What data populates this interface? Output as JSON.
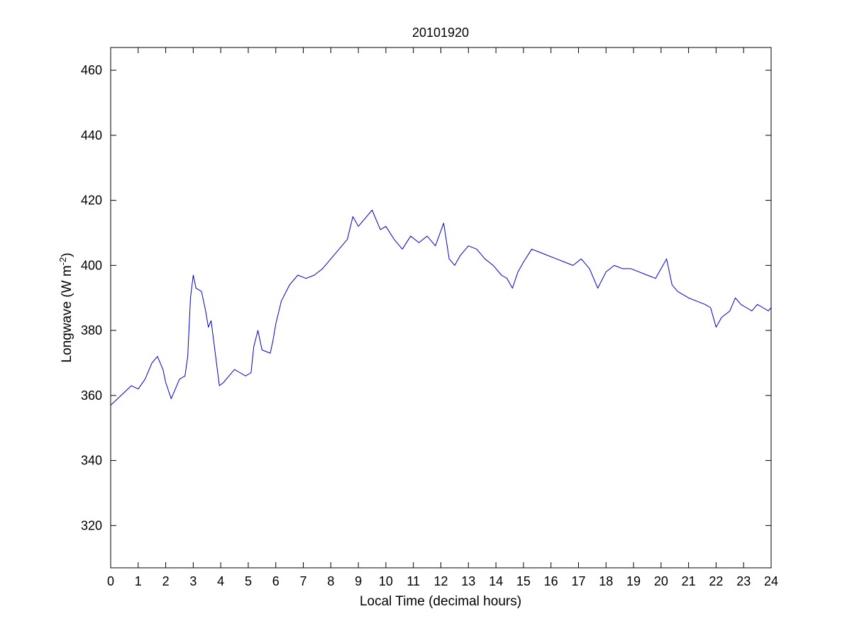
{
  "chart_data": {
    "type": "line",
    "title": "20101920",
    "xlabel": "Local Time (decimal hours)",
    "ylabel_main": "Longwave (W m",
    "ylabel_sup": "-2",
    "ylabel_close": ")",
    "xlim": [
      0,
      24
    ],
    "ylim": [
      307,
      467
    ],
    "xticks": [
      "0",
      "1",
      "2",
      "3",
      "4",
      "5",
      "6",
      "7",
      "8",
      "9",
      "10",
      "11",
      "12",
      "13",
      "14",
      "15",
      "16",
      "17",
      "18",
      "19",
      "20",
      "21",
      "22",
      "23",
      "24"
    ],
    "yticks": [
      "320",
      "340",
      "360",
      "380",
      "400",
      "420",
      "440",
      "460"
    ],
    "grid": false,
    "legend": "none",
    "line_color": "#0000CC",
    "series": [
      {
        "x": [
          0,
          0.25,
          0.5,
          0.75,
          1.0,
          1.25,
          1.5,
          1.7,
          1.9,
          2.0,
          2.2,
          2.35,
          2.5,
          2.7,
          2.8,
          2.9,
          3.0,
          3.1,
          3.3,
          3.45,
          3.55,
          3.65,
          3.8,
          3.95,
          4.1,
          4.3,
          4.5,
          4.7,
          4.9,
          5.1,
          5.2,
          5.35,
          5.5,
          5.8,
          5.9,
          6.0,
          6.2,
          6.5,
          6.8,
          7.1,
          7.4,
          7.7,
          8.0,
          8.3,
          8.6,
          8.8,
          9.0,
          9.2,
          9.5,
          9.8,
          10.0,
          10.3,
          10.6,
          10.9,
          11.2,
          11.5,
          11.8,
          12.1,
          12.3,
          12.5,
          12.7,
          13.0,
          13.3,
          13.6,
          13.9,
          14.2,
          14.4,
          14.6,
          14.8,
          15.0,
          15.3,
          15.6,
          15.9,
          16.2,
          16.5,
          16.8,
          17.1,
          17.4,
          17.7,
          18.0,
          18.3,
          18.6,
          18.9,
          19.2,
          19.5,
          19.8,
          20.0,
          20.2,
          20.4,
          20.6,
          20.8,
          21.0,
          21.3,
          21.6,
          21.8,
          22.0,
          22.2,
          22.5,
          22.7,
          22.9,
          23.1,
          23.3,
          23.5,
          23.7,
          23.9,
          24.0
        ],
        "y": [
          357,
          359,
          361,
          363,
          362,
          365,
          370,
          372,
          368,
          364,
          359,
          362,
          365,
          366,
          372,
          390,
          397,
          393,
          392,
          386,
          381,
          383,
          373,
          363,
          364,
          366,
          368,
          367,
          366,
          367,
          375,
          380,
          374,
          373,
          377,
          382,
          389,
          394,
          397,
          396,
          397,
          399,
          402,
          405,
          408,
          415,
          412,
          414,
          417,
          411,
          412,
          408,
          405,
          409,
          407,
          409,
          406,
          413,
          402,
          400,
          403,
          406,
          405,
          402,
          400,
          397,
          396,
          393,
          398,
          401,
          405,
          404,
          403,
          402,
          401,
          400,
          402,
          399,
          393,
          398,
          400,
          399,
          399,
          398,
          397,
          396,
          399,
          402,
          394,
          392,
          391,
          390,
          389,
          388,
          387,
          381,
          384,
          386,
          390,
          388,
          387,
          386,
          388,
          387,
          386,
          387
        ]
      }
    ]
  }
}
